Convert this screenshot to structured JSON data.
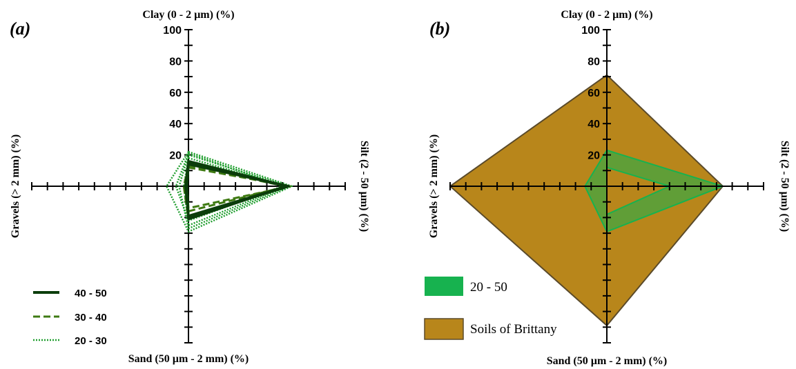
{
  "chart_data": [
    {
      "type": "radar",
      "panel_label": "(a)",
      "axes": {
        "top": "Clay (0 - 2 µm) (%)",
        "right": "Silt (2 - 50 µm) (%)",
        "bottom": "Sand (50 µm - 2 mm) (%)",
        "left": "Gravels (> 2 mm) (%)"
      },
      "ylim": [
        0,
        100
      ],
      "tick_labels": [
        "20",
        "40",
        "60",
        "80",
        "100"
      ],
      "tick_step": 10,
      "series": [
        {
          "name": "40 - 50",
          "color": "#0b3d0b",
          "style": "solid",
          "lines": [
            {
              "clay": 15,
              "silt": 62,
              "sand": 21,
              "gravels": 1
            },
            {
              "clay": 14,
              "silt": 64,
              "sand": 20,
              "gravels": 1
            },
            {
              "clay": 16,
              "silt": 63,
              "sand": 19,
              "gravels": 2
            }
          ]
        },
        {
          "name": "30 - 40",
          "color": "#3e7a12",
          "style": "dashed",
          "lines": [
            {
              "clay": 16,
              "silt": 63,
              "sand": 16,
              "gravels": 2
            },
            {
              "clay": 12,
              "silt": 65,
              "sand": 14,
              "gravels": 1
            },
            {
              "clay": 13,
              "silt": 62,
              "sand": 21,
              "gravels": 3
            }
          ]
        },
        {
          "name": "20 - 30",
          "color": "#1f9e2e",
          "style": "dotted",
          "lines": [
            {
              "clay": 22,
              "silt": 66,
              "sand": 29,
              "gravels": 14
            },
            {
              "clay": 20,
              "silt": 64,
              "sand": 27,
              "gravels": 6
            },
            {
              "clay": 18,
              "silt": 62,
              "sand": 25,
              "gravels": 3
            },
            {
              "clay": 21,
              "silt": 60,
              "sand": 22,
              "gravels": 8
            }
          ]
        }
      ]
    },
    {
      "type": "radar",
      "panel_label": "(b)",
      "axes": {
        "top": "Clay (0 - 2 µm) (%)",
        "right": "Silt (2 - 50 µm) (%)",
        "bottom": "Sand (50 µm - 2 mm) (%)",
        "left": "Gravels (> 2 mm) (%)"
      },
      "ylim": [
        0,
        100
      ],
      "tick_labels": [
        "20",
        "40",
        "60",
        "80",
        "100"
      ],
      "tick_step": 10,
      "series": [
        {
          "name": "Soils of Brittany",
          "color": "#b8861b",
          "stroke": "#5a4a2a",
          "outer": {
            "clay": 71,
            "silt": 74,
            "sand": 89,
            "gravels": 100
          },
          "inner": {
            "clay": 0,
            "silt": 0,
            "sand": 0,
            "gravels": 0
          }
        },
        {
          "name": "20 - 50",
          "color": "#17b24f",
          "stroke": "#17b24f",
          "outer": {
            "clay": 23,
            "silt": 74,
            "sand": 29,
            "gravels": 14
          },
          "inner": {
            "clay": 12,
            "silt": 40,
            "sand": 18,
            "gravels": 0
          }
        }
      ]
    }
  ]
}
